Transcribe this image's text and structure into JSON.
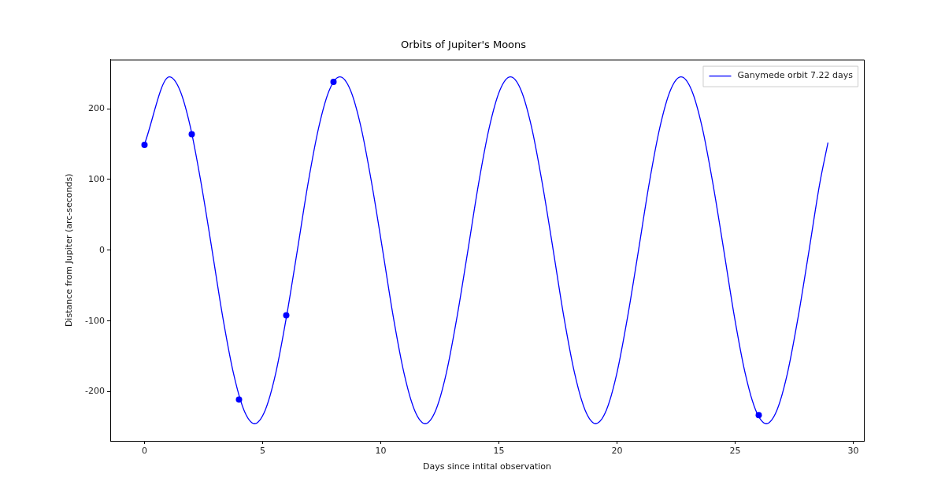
{
  "chart_data": {
    "type": "line",
    "title": "Orbits of Jupiter's Moons",
    "xlabel": "Days since intital observation",
    "ylabel": "Distance from Jupiter (arc-seconds)",
    "xlim": [
      -1.45,
      30.45
    ],
    "xticks": [
      0,
      5,
      10,
      15,
      20,
      25,
      30
    ],
    "ylim": [
      -269.5,
      269.5
    ],
    "yticks": [
      -200,
      -100,
      0,
      100,
      200
    ],
    "grid": false,
    "legend": "top right",
    "series": [
      {
        "name": "Ganymede orbit 7.22 days",
        "color": "#0000ff",
        "marker": "none",
        "x": [
          0,
          1.05,
          1.5,
          1.95,
          2.4,
          2.86,
          3.31,
          3.76,
          4.21,
          4.66,
          5.11,
          5.56,
          6.01,
          6.47,
          6.92,
          7.37,
          7.82,
          8.27,
          8.72,
          9.17,
          9.62,
          10.08,
          10.53,
          10.98,
          11.43,
          11.88,
          12.33,
          12.78,
          13.23,
          13.69,
          14.14,
          14.59,
          15.04,
          15.49,
          15.94,
          16.39,
          16.84,
          17.3,
          17.75,
          18.2,
          18.65,
          19.1,
          19.55,
          20,
          20.45,
          20.91,
          21.36,
          21.81,
          22.26,
          22.71,
          23.16,
          23.61,
          24.06,
          24.52,
          24.97,
          25.42,
          25.87,
          26.32,
          26.77,
          27.22,
          27.67,
          28.13,
          28.58,
          28.93
        ],
        "values": [
          150,
          245,
          226,
          173,
          94,
          0,
          -94,
          -173,
          -226,
          -245,
          -226,
          -173,
          -94,
          0,
          94,
          173,
          226,
          245,
          226,
          173,
          94,
          0,
          -94,
          -173,
          -226,
          -245,
          -226,
          -173,
          -94,
          0,
          94,
          173,
          226,
          245,
          226,
          173,
          94,
          0,
          -94,
          -173,
          -226,
          -245,
          -226,
          -173,
          -94,
          0,
          94,
          173,
          226,
          245,
          226,
          173,
          94,
          0,
          -94,
          -173,
          -226,
          -245,
          -226,
          -173,
          -94,
          0,
          94,
          152
        ]
      },
      {
        "type": "scatter",
        "color": "#0000ff",
        "marker": "circle",
        "x": [
          0,
          2,
          4,
          6,
          8,
          26
        ],
        "values": [
          149,
          164,
          -211,
          -92,
          238,
          -233
        ]
      }
    ]
  }
}
